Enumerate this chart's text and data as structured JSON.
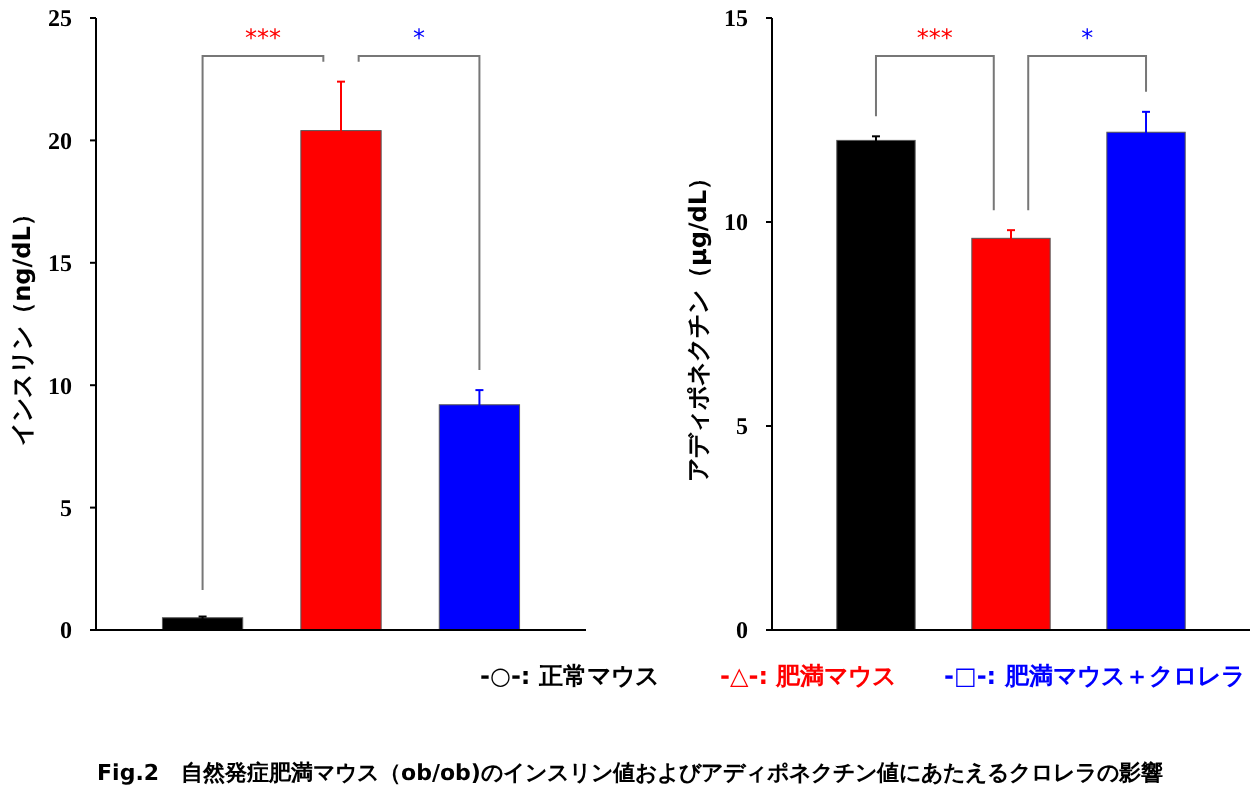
{
  "chart_data": [
    {
      "type": "bar",
      "ylabel": "インスリン（ng/dL）",
      "categories": [
        null,
        null,
        null
      ],
      "series": [
        {
          "color": "#000000",
          "values": [
            0.5,
            null,
            null
          ],
          "errors": [
            0.05,
            null,
            null
          ]
        },
        {
          "color": "#ff0000",
          "values": [
            null,
            20.4,
            null
          ],
          "errors": [
            null,
            2.0,
            null
          ]
        },
        {
          "color": "#0000ff",
          "values": [
            null,
            null,
            9.2
          ],
          "errors": [
            null,
            null,
            0.6
          ]
        }
      ],
      "ylim": [
        0,
        25
      ],
      "yticks": [
        0,
        5,
        10,
        15,
        20,
        25
      ],
      "annotations": [
        "***",
        "*"
      ]
    },
    {
      "type": "bar",
      "ylabel": "アディポネクチン（μg/dL）",
      "categories": [
        null,
        null,
        null
      ],
      "series": [
        {
          "name": "-○-: 正常マウス",
          "color": "#000000",
          "values": [
            12.0,
            null,
            null
          ],
          "errors": [
            0.1,
            null,
            null
          ]
        },
        {
          "name": "-△-: 肥満マウス",
          "color": "#ff0000",
          "values": [
            null,
            9.6,
            null
          ],
          "errors": [
            null,
            0.2,
            null
          ]
        },
        {
          "name": "-□-: 肥満マウス＋クロレラ",
          "color": "#0000ff",
          "values": [
            null,
            null,
            12.2
          ],
          "errors": [
            null,
            null,
            0.5
          ]
        }
      ],
      "ylim": [
        0,
        15
      ],
      "yticks": [
        0,
        5,
        10,
        15
      ],
      "legend": "bottom",
      "annotations": [
        "***",
        "*",
        "Fig.2　自然発症肥満マウス（ob/ob)のインスリン値およびアディポネクチン値にあたえるクロレラの影響"
      ]
    }
  ]
}
